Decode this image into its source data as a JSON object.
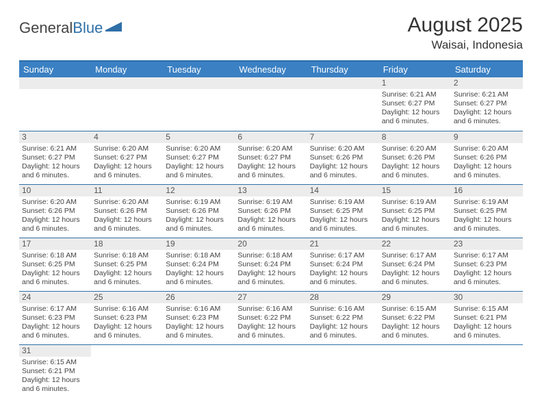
{
  "logo": {
    "text1": "General",
    "text2": "Blue"
  },
  "title": "August 2025",
  "location": "Waisai, Indonesia",
  "colors": {
    "header_bg": "#3a80c3",
    "header_border": "#2f6fa7",
    "row_divider": "#2f6fa7",
    "daynum_bg": "#ececec",
    "text": "#444444"
  },
  "weekdays": [
    "Sunday",
    "Monday",
    "Tuesday",
    "Wednesday",
    "Thursday",
    "Friday",
    "Saturday"
  ],
  "layout": {
    "first_blank": 5,
    "days_in_month": 31
  },
  "days": {
    "1": {
      "sunrise": "6:21 AM",
      "sunset": "6:27 PM",
      "daylight": "12 hours and 6 minutes."
    },
    "2": {
      "sunrise": "6:21 AM",
      "sunset": "6:27 PM",
      "daylight": "12 hours and 6 minutes."
    },
    "3": {
      "sunrise": "6:21 AM",
      "sunset": "6:27 PM",
      "daylight": "12 hours and 6 minutes."
    },
    "4": {
      "sunrise": "6:20 AM",
      "sunset": "6:27 PM",
      "daylight": "12 hours and 6 minutes."
    },
    "5": {
      "sunrise": "6:20 AM",
      "sunset": "6:27 PM",
      "daylight": "12 hours and 6 minutes."
    },
    "6": {
      "sunrise": "6:20 AM",
      "sunset": "6:27 PM",
      "daylight": "12 hours and 6 minutes."
    },
    "7": {
      "sunrise": "6:20 AM",
      "sunset": "6:26 PM",
      "daylight": "12 hours and 6 minutes."
    },
    "8": {
      "sunrise": "6:20 AM",
      "sunset": "6:26 PM",
      "daylight": "12 hours and 6 minutes."
    },
    "9": {
      "sunrise": "6:20 AM",
      "sunset": "6:26 PM",
      "daylight": "12 hours and 6 minutes."
    },
    "10": {
      "sunrise": "6:20 AM",
      "sunset": "6:26 PM",
      "daylight": "12 hours and 6 minutes."
    },
    "11": {
      "sunrise": "6:20 AM",
      "sunset": "6:26 PM",
      "daylight": "12 hours and 6 minutes."
    },
    "12": {
      "sunrise": "6:19 AM",
      "sunset": "6:26 PM",
      "daylight": "12 hours and 6 minutes."
    },
    "13": {
      "sunrise": "6:19 AM",
      "sunset": "6:26 PM",
      "daylight": "12 hours and 6 minutes."
    },
    "14": {
      "sunrise": "6:19 AM",
      "sunset": "6:25 PM",
      "daylight": "12 hours and 6 minutes."
    },
    "15": {
      "sunrise": "6:19 AM",
      "sunset": "6:25 PM",
      "daylight": "12 hours and 6 minutes."
    },
    "16": {
      "sunrise": "6:19 AM",
      "sunset": "6:25 PM",
      "daylight": "12 hours and 6 minutes."
    },
    "17": {
      "sunrise": "6:18 AM",
      "sunset": "6:25 PM",
      "daylight": "12 hours and 6 minutes."
    },
    "18": {
      "sunrise": "6:18 AM",
      "sunset": "6:25 PM",
      "daylight": "12 hours and 6 minutes."
    },
    "19": {
      "sunrise": "6:18 AM",
      "sunset": "6:24 PM",
      "daylight": "12 hours and 6 minutes."
    },
    "20": {
      "sunrise": "6:18 AM",
      "sunset": "6:24 PM",
      "daylight": "12 hours and 6 minutes."
    },
    "21": {
      "sunrise": "6:17 AM",
      "sunset": "6:24 PM",
      "daylight": "12 hours and 6 minutes."
    },
    "22": {
      "sunrise": "6:17 AM",
      "sunset": "6:24 PM",
      "daylight": "12 hours and 6 minutes."
    },
    "23": {
      "sunrise": "6:17 AM",
      "sunset": "6:23 PM",
      "daylight": "12 hours and 6 minutes."
    },
    "24": {
      "sunrise": "6:17 AM",
      "sunset": "6:23 PM",
      "daylight": "12 hours and 6 minutes."
    },
    "25": {
      "sunrise": "6:16 AM",
      "sunset": "6:23 PM",
      "daylight": "12 hours and 6 minutes."
    },
    "26": {
      "sunrise": "6:16 AM",
      "sunset": "6:23 PM",
      "daylight": "12 hours and 6 minutes."
    },
    "27": {
      "sunrise": "6:16 AM",
      "sunset": "6:22 PM",
      "daylight": "12 hours and 6 minutes."
    },
    "28": {
      "sunrise": "6:16 AM",
      "sunset": "6:22 PM",
      "daylight": "12 hours and 6 minutes."
    },
    "29": {
      "sunrise": "6:15 AM",
      "sunset": "6:22 PM",
      "daylight": "12 hours and 6 minutes."
    },
    "30": {
      "sunrise": "6:15 AM",
      "sunset": "6:21 PM",
      "daylight": "12 hours and 6 minutes."
    },
    "31": {
      "sunrise": "6:15 AM",
      "sunset": "6:21 PM",
      "daylight": "12 hours and 6 minutes."
    }
  },
  "labels": {
    "sunrise": "Sunrise:",
    "sunset": "Sunset:",
    "daylight": "Daylight:"
  }
}
